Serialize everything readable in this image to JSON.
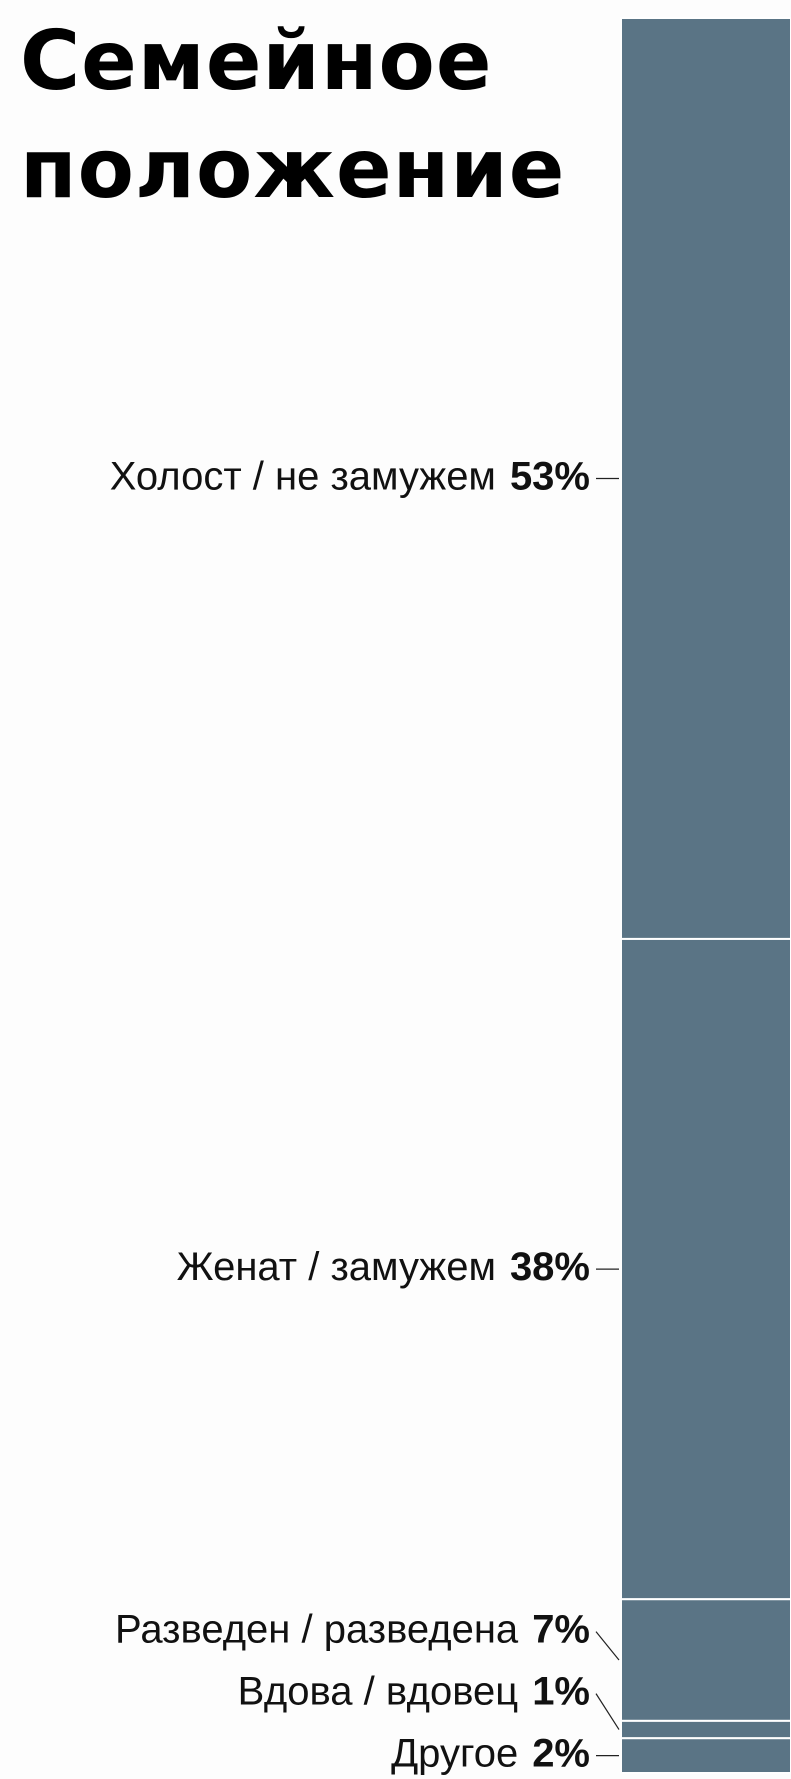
{
  "chart_data": {
    "type": "stacked-bar",
    "title": "Семейное положение",
    "categories": [
      "Холост / не замужем",
      "Женат / замужем",
      "Разведен / разведена",
      "Вдова / вдовец",
      "Другое"
    ],
    "values": [
      53,
      38,
      7,
      1,
      2
    ],
    "value_labels": [
      "53%",
      "38%",
      "7%",
      "1%",
      "2%"
    ],
    "color": "#5a7485"
  }
}
